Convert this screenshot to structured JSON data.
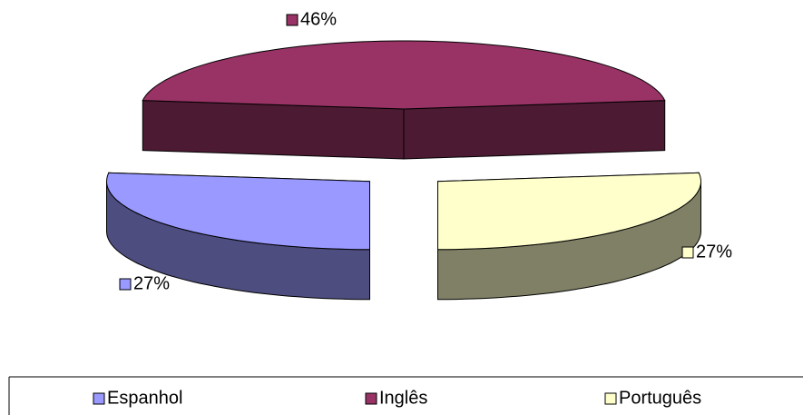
{
  "chart_data": {
    "type": "pie3d",
    "categories": [
      "Espanhol",
      "Inglês",
      "Português"
    ],
    "values": [
      27,
      46,
      27
    ],
    "value_labels": [
      "27%",
      "46%",
      "27%"
    ],
    "colors": [
      "#9999ff",
      "#993366",
      "#ffffcc"
    ],
    "legend": "bottom"
  }
}
